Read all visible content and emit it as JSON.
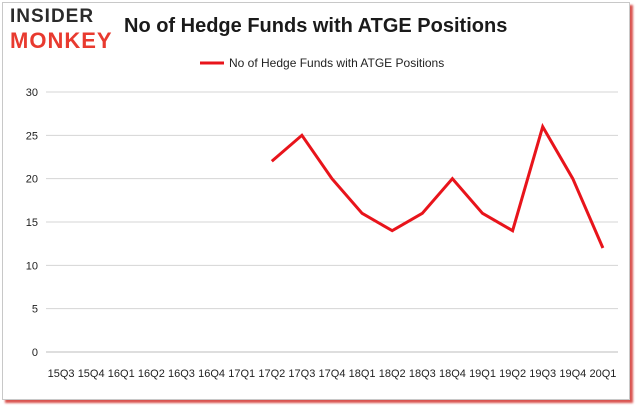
{
  "logo": {
    "line1": "INSIDER",
    "line2": "MONKEY"
  },
  "chart_data": {
    "type": "line",
    "title": "No of Hedge Funds with ATGE Positions",
    "categories": [
      "15Q3",
      "15Q4",
      "16Q1",
      "16Q2",
      "16Q3",
      "16Q4",
      "17Q1",
      "17Q2",
      "17Q3",
      "17Q4",
      "18Q1",
      "18Q2",
      "18Q3",
      "18Q4",
      "19Q1",
      "19Q2",
      "19Q3",
      "19Q4",
      "20Q1"
    ],
    "series": [
      {
        "name": "No of Hedge Funds with ATGE Positions",
        "color": "#e8141b",
        "values": [
          null,
          null,
          null,
          null,
          null,
          null,
          null,
          22,
          25,
          20,
          16,
          14,
          16,
          20,
          16,
          14,
          26,
          20,
          12
        ]
      }
    ],
    "ylim": [
      0,
      30
    ],
    "yticks": [
      0,
      5,
      10,
      15,
      20,
      25,
      30
    ],
    "grid": true,
    "legend": "top-center"
  }
}
